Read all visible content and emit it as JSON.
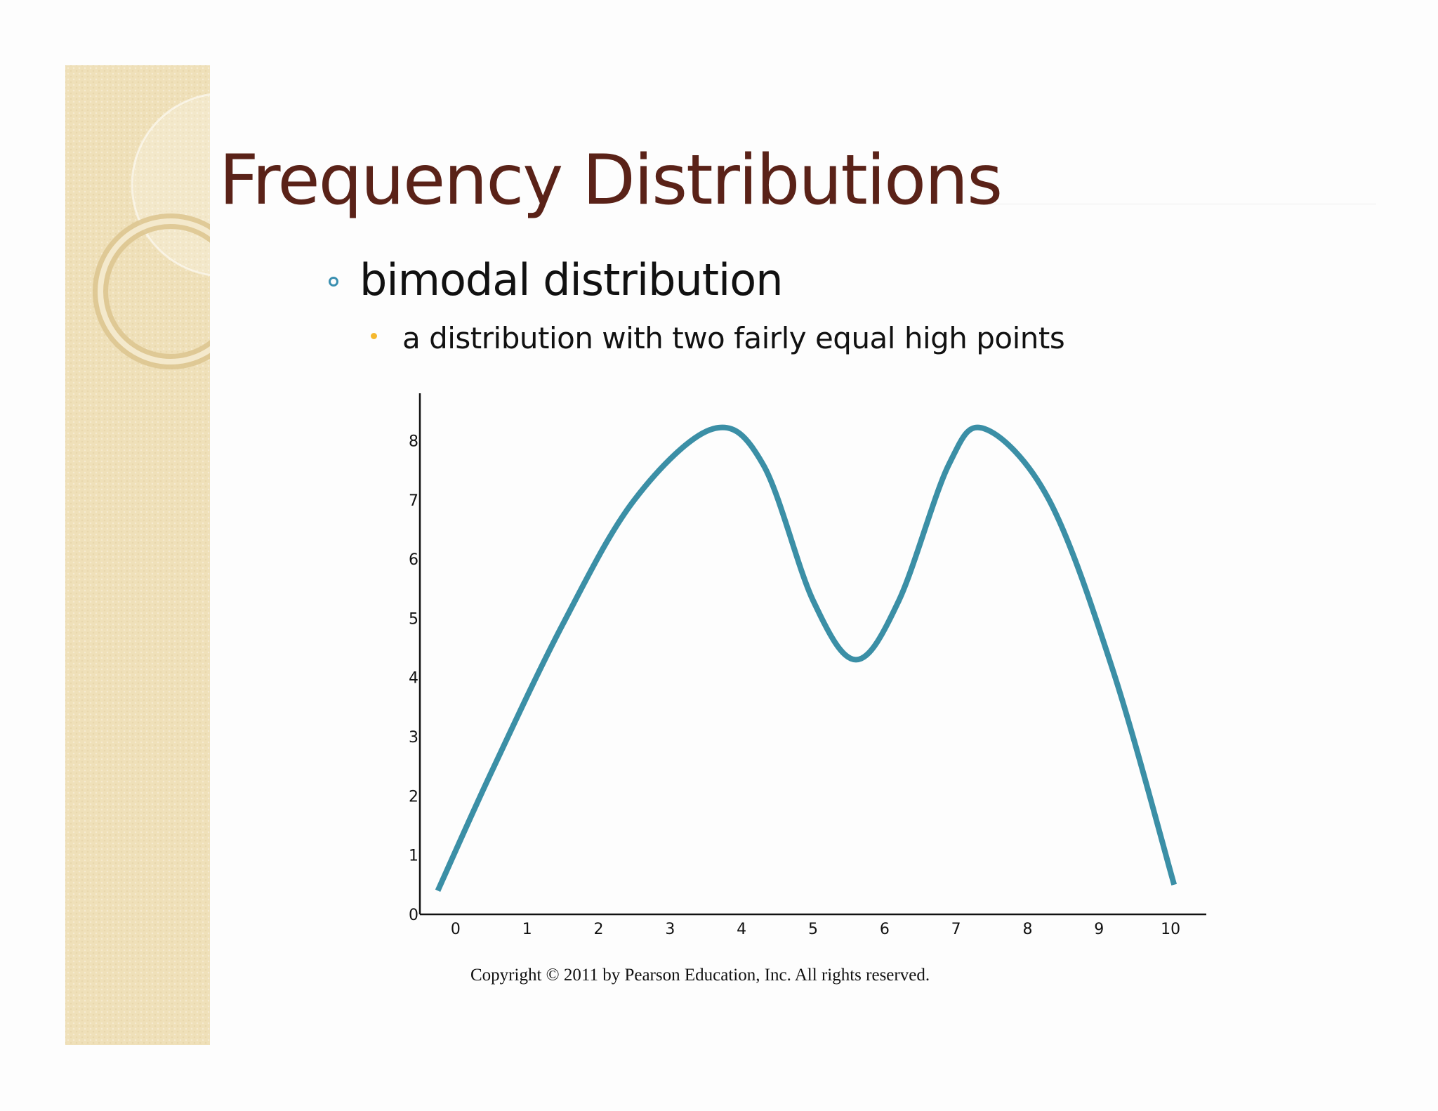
{
  "slide": {
    "title": "Frequency Distributions",
    "bullet_level1": "bimodal distribution",
    "bullet_level2": "a distribution with two fairly equal high points",
    "copyright": "Copyright © 2011 by Pearson Education, Inc. All rights reserved.",
    "colors": {
      "title": "#5a2218",
      "bullet_level1_marker": "#3a8fb0",
      "bullet_level2_marker": "#f5b82e",
      "side_panel": "#efe0b9"
    }
  },
  "chart_data": {
    "type": "line",
    "title": "",
    "xlabel": "",
    "ylabel": "",
    "x_ticks": [
      "0",
      "1",
      "2",
      "3",
      "4",
      "5",
      "6",
      "7",
      "8",
      "9",
      "10"
    ],
    "y_ticks": [
      "0",
      "1",
      "2",
      "3",
      "4",
      "5",
      "6",
      "7",
      "8"
    ],
    "xlim": [
      -0.5,
      10.5
    ],
    "ylim": [
      0,
      8.8
    ],
    "grid": false,
    "legend": "none",
    "series": [
      {
        "color": "#3b8fa6",
        "smooth": true,
        "x": [
          -0.25,
          0.5,
          1.5,
          2.5,
          3.6,
          4.3,
          5.0,
          5.6,
          6.2,
          6.9,
          7.4,
          8.3,
          9.2,
          10.05
        ],
        "y": [
          0.4,
          2.4,
          4.9,
          7.0,
          8.2,
          7.6,
          5.3,
          4.3,
          5.3,
          7.6,
          8.2,
          7.0,
          4.1,
          0.5
        ]
      }
    ]
  }
}
